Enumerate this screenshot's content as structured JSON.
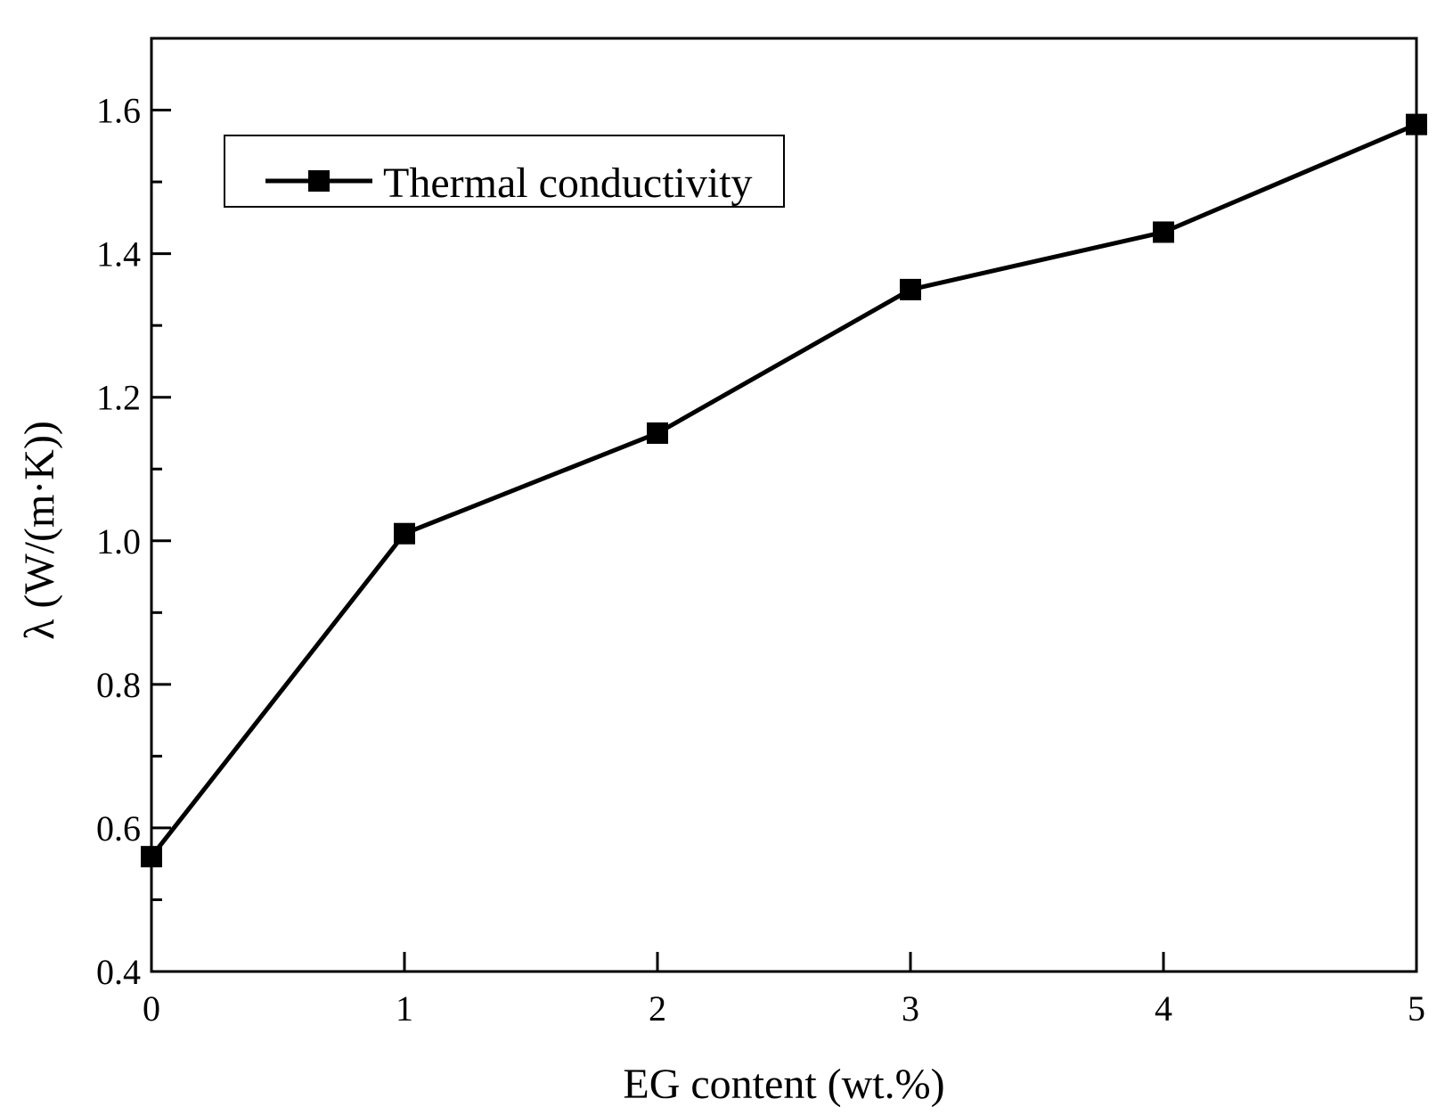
{
  "chart_data": {
    "type": "line",
    "title": "",
    "xlabel": "EG content (wt.%)",
    "ylabel": "λ (W/(m·K))",
    "xlim": [
      0,
      5
    ],
    "ylim": [
      0.4,
      1.7
    ],
    "xticks": [
      0,
      1,
      2,
      3,
      4,
      5
    ],
    "xtick_labels": [
      "0",
      "1",
      "2",
      "3",
      "4",
      "5"
    ],
    "yticks": [
      0.4,
      0.6,
      0.8,
      1.0,
      1.2,
      1.4,
      1.6
    ],
    "ytick_labels": [
      "0.4",
      "0.6",
      "0.8",
      "1.0",
      "1.2",
      "1.4",
      "1.6"
    ],
    "grid": false,
    "legend_position": "top-left",
    "series": [
      {
        "name": "Thermal conductivity",
        "marker": "square",
        "color": "#000000",
        "x": [
          0,
          1,
          2,
          3,
          4,
          5
        ],
        "values": [
          0.56,
          1.01,
          1.15,
          1.35,
          1.43,
          1.58
        ]
      }
    ]
  }
}
